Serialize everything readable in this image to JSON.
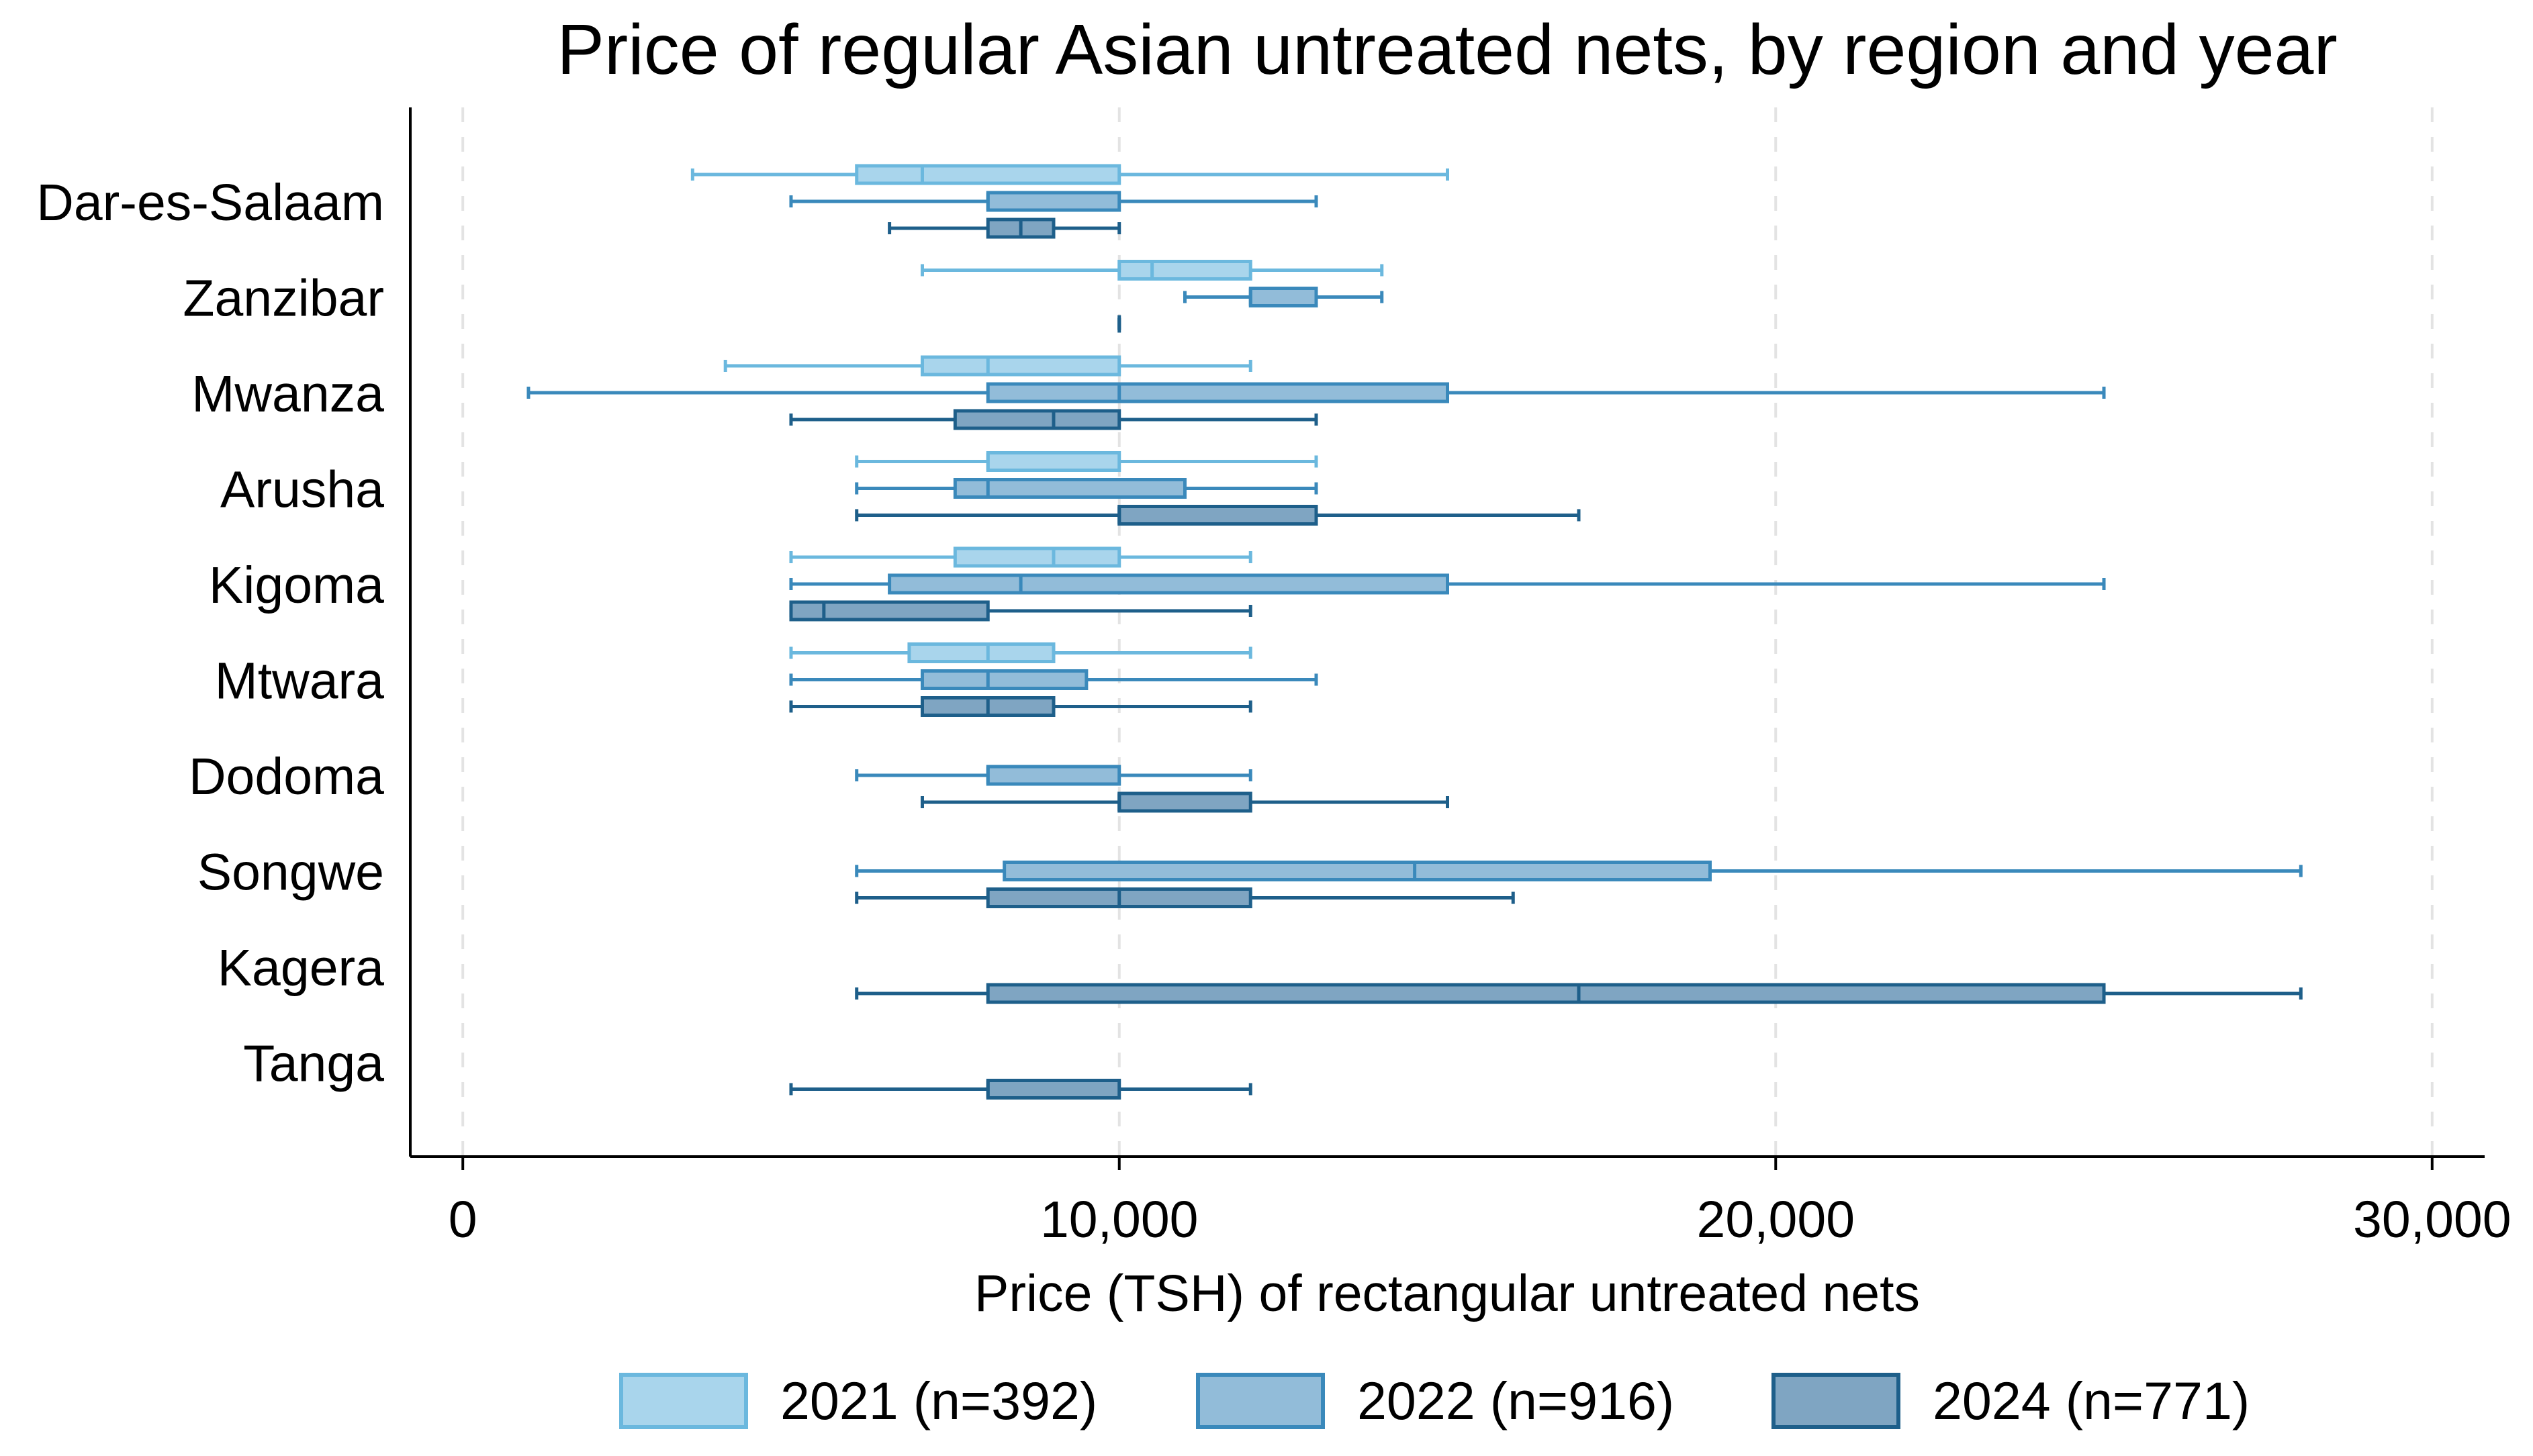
{
  "chart_data": {
    "type": "boxplot",
    "orientation": "horizontal",
    "title": "Price of regular Asian untreated nets, by region and year",
    "xlabel": "Price (TSH) of rectangular untreated nets",
    "ylabel": "",
    "xlim": [
      -800,
      30800
    ],
    "xticks": [
      0,
      10000,
      20000,
      30000
    ],
    "xtick_labels": [
      "0",
      "10,000",
      "20,000",
      "30,000"
    ],
    "grid": "vertical dashed",
    "legend_position": "bottom",
    "series": [
      {
        "key": "2021",
        "name": "2021 (n=392)",
        "color": "#6BB8DE",
        "fill": "#A9D5EC"
      },
      {
        "key": "2022",
        "name": "2022 (n=916)",
        "color": "#3A89BB",
        "fill": "#92BCD9"
      },
      {
        "key": "2024",
        "name": "2024 (n=771)",
        "color": "#1E5F8A",
        "fill": "#7FA5C2"
      }
    ],
    "categories": [
      "Dar-es-Salaam",
      "Zanzibar",
      "Mwanza",
      "Arusha",
      "Kigoma",
      "Mtwara",
      "Dodoma",
      "Songwe",
      "Kagera",
      "Tanga"
    ],
    "groups": [
      {
        "region": "Dar-es-Salaam",
        "boxes": [
          {
            "year": "2021",
            "min": 3500,
            "q1": 6000,
            "median": 7000,
            "q3": 10000,
            "max": 15000
          },
          {
            "year": "2022",
            "min": 5000,
            "q1": 8000,
            "median": 8000,
            "q3": 10000,
            "max": 13000
          },
          {
            "year": "2024",
            "min": 6500,
            "q1": 8000,
            "median": 8500,
            "q3": 9000,
            "max": 10000
          }
        ]
      },
      {
        "region": "Zanzibar",
        "boxes": [
          {
            "year": "2021",
            "min": 7000,
            "q1": 10000,
            "median": 10500,
            "q3": 12000,
            "max": 14000
          },
          {
            "year": "2022",
            "min": 11000,
            "q1": 12000,
            "median": 12000,
            "q3": 13000,
            "max": 14000
          },
          {
            "year": "2024",
            "min": 10000,
            "q1": 10000,
            "median": 10000,
            "q3": 10000,
            "max": 10000
          }
        ]
      },
      {
        "region": "Mwanza",
        "boxes": [
          {
            "year": "2021",
            "min": 4000,
            "q1": 7000,
            "median": 8000,
            "q3": 10000,
            "max": 12000
          },
          {
            "year": "2022",
            "min": 1000,
            "q1": 8000,
            "median": 10000,
            "q3": 15000,
            "max": 25000
          },
          {
            "year": "2024",
            "min": 5000,
            "q1": 7500,
            "median": 9000,
            "q3": 10000,
            "max": 13000
          }
        ]
      },
      {
        "region": "Arusha",
        "boxes": [
          {
            "year": "2021",
            "min": 6000,
            "q1": 8000,
            "median": 8000,
            "q3": 10000,
            "max": 13000
          },
          {
            "year": "2022",
            "min": 6000,
            "q1": 7500,
            "median": 8000,
            "q3": 11000,
            "max": 13000
          },
          {
            "year": "2024",
            "min": 6000,
            "q1": 10000,
            "median": 10000,
            "q3": 13000,
            "max": 17000
          }
        ]
      },
      {
        "region": "Kigoma",
        "boxes": [
          {
            "year": "2021",
            "min": 5000,
            "q1": 7500,
            "median": 9000,
            "q3": 10000,
            "max": 12000
          },
          {
            "year": "2022",
            "min": 5000,
            "q1": 6500,
            "median": 8500,
            "q3": 15000,
            "max": 25000
          },
          {
            "year": "2024",
            "min": 5000,
            "q1": 5000,
            "median": 5500,
            "q3": 8000,
            "max": 12000
          }
        ]
      },
      {
        "region": "Mtwara",
        "boxes": [
          {
            "year": "2021",
            "min": 5000,
            "q1": 6800,
            "median": 8000,
            "q3": 9000,
            "max": 12000
          },
          {
            "year": "2022",
            "min": 5000,
            "q1": 7000,
            "median": 8000,
            "q3": 9500,
            "max": 13000
          },
          {
            "year": "2024",
            "min": 5000,
            "q1": 7000,
            "median": 8000,
            "q3": 9000,
            "max": 12000
          }
        ]
      },
      {
        "region": "Dodoma",
        "boxes": [
          {
            "year": "2022",
            "min": 6000,
            "q1": 8000,
            "median": 8000,
            "q3": 10000,
            "max": 12000
          },
          {
            "year": "2024",
            "min": 7000,
            "q1": 10000,
            "median": 10000,
            "q3": 12000,
            "max": 15000
          }
        ]
      },
      {
        "region": "Songwe",
        "boxes": [
          {
            "year": "2022",
            "min": 6000,
            "q1": 8250,
            "median": 14500,
            "q3": 19000,
            "max": 28000
          },
          {
            "year": "2024",
            "min": 6000,
            "q1": 8000,
            "median": 10000,
            "q3": 12000,
            "max": 16000
          }
        ]
      },
      {
        "region": "Kagera",
        "boxes": [
          {
            "year": "2024",
            "min": 6000,
            "q1": 8000,
            "median": 17000,
            "q3": 25000,
            "max": 28000
          }
        ]
      },
      {
        "region": "Tanga",
        "boxes": [
          {
            "year": "2024",
            "min": 5000,
            "q1": 8000,
            "median": 8000,
            "q3": 10000,
            "max": 12000
          }
        ]
      }
    ]
  }
}
